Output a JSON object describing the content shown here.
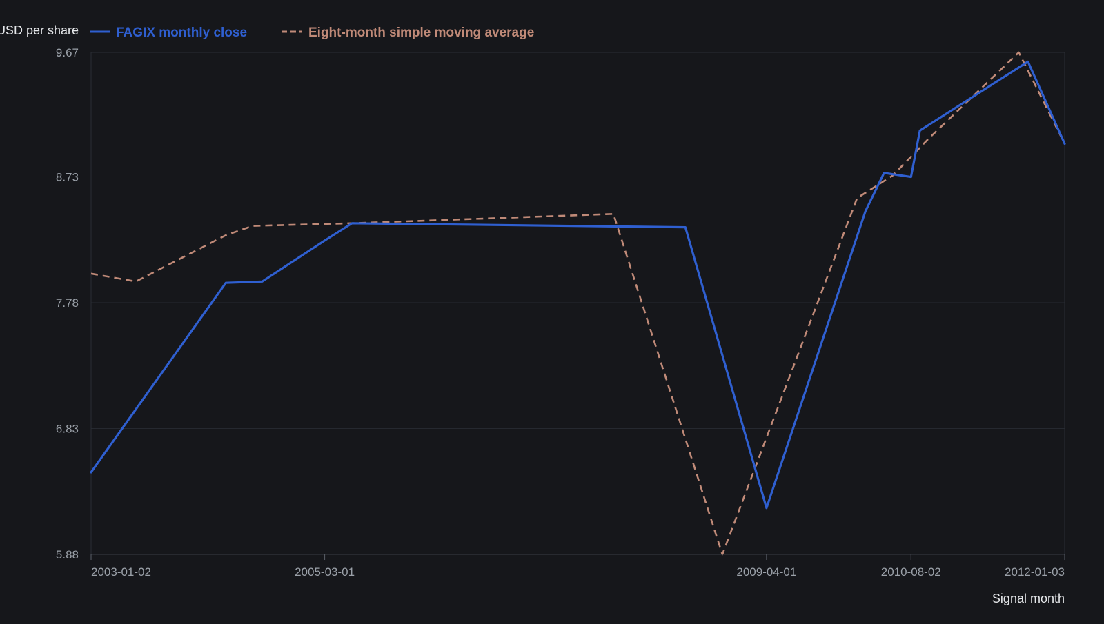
{
  "chart_data": {
    "type": "line",
    "ylabel": "USD per share",
    "xlabel": "Signal month",
    "ylim": [
      5.88,
      9.67
    ],
    "y_ticks": [
      "5.88",
      "6.83",
      "7.78",
      "8.73",
      "9.67"
    ],
    "x_ticks": [
      "2003-01-02",
      "2005-03-01",
      "2009-04-01",
      "2010-08-02",
      "2012-01-03"
    ],
    "xlim": [
      "2003-01-02",
      "2012-01-03"
    ],
    "grid": "horizontal",
    "legend_position": "top",
    "series": [
      {
        "name": "FAGIX monthly close",
        "color": "#2f5fd0",
        "dash": "solid",
        "points": [
          {
            "x": "2003-01-02",
            "y": 6.5
          },
          {
            "x": "2004-04-01",
            "y": 7.93
          },
          {
            "x": "2004-08-02",
            "y": 7.94
          },
          {
            "x": "2005-03-01",
            "y": 8.25
          },
          {
            "x": "2005-06-01",
            "y": 8.38
          },
          {
            "x": "2008-07-01",
            "y": 8.35
          },
          {
            "x": "2009-04-01",
            "y": 6.23
          },
          {
            "x": "2010-03-01",
            "y": 8.47
          },
          {
            "x": "2010-05-03",
            "y": 8.76
          },
          {
            "x": "2010-08-02",
            "y": 8.73
          },
          {
            "x": "2010-09-01",
            "y": 9.08
          },
          {
            "x": "2011-09-01",
            "y": 9.6
          },
          {
            "x": "2012-01-03",
            "y": 8.98
          }
        ]
      },
      {
        "name": "Eight-month simple moving average",
        "color": "#c08a78",
        "dash": "dashed",
        "points": [
          {
            "x": "2003-01-02",
            "y": 8.0
          },
          {
            "x": "2003-06-02",
            "y": 7.94
          },
          {
            "x": "2004-04-01",
            "y": 8.29
          },
          {
            "x": "2004-07-01",
            "y": 8.36
          },
          {
            "x": "2005-06-01",
            "y": 8.38
          },
          {
            "x": "2007-11-01",
            "y": 8.45
          },
          {
            "x": "2008-11-03",
            "y": 5.88
          },
          {
            "x": "2010-02-01",
            "y": 8.57
          },
          {
            "x": "2010-06-01",
            "y": 8.74
          },
          {
            "x": "2010-10-01",
            "y": 9.02
          },
          {
            "x": "2011-08-01",
            "y": 9.67
          },
          {
            "x": "2012-01-03",
            "y": 8.98
          }
        ]
      }
    ]
  }
}
